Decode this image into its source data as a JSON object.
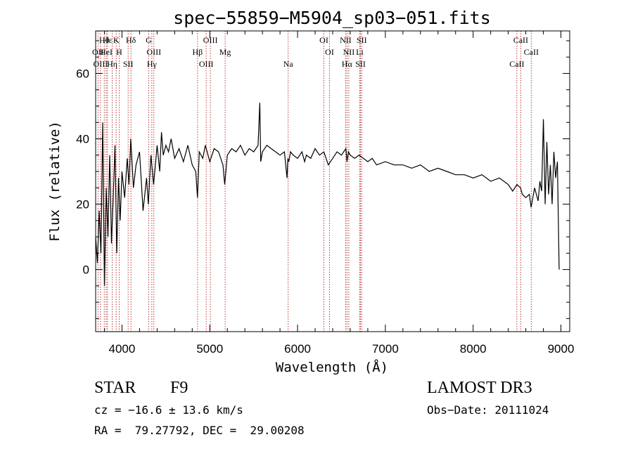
{
  "chart_data": {
    "type": "line",
    "title": "spec−55859−M5904_sp03−051.fits",
    "xlabel": "Wavelength (Å)",
    "ylabel": "Flux (relative)",
    "xlim": [
      3700,
      9100
    ],
    "ylim": [
      -19,
      73
    ],
    "xticks": [
      4000,
      5000,
      6000,
      7000,
      8000,
      9000
    ],
    "yticks": [
      0,
      20,
      40,
      60
    ],
    "grid": false,
    "line_color": "#000000",
    "marker_color": "#b22222",
    "series": [
      {
        "name": "flux",
        "x": [
          3700,
          3720,
          3740,
          3760,
          3780,
          3800,
          3820,
          3840,
          3860,
          3880,
          3900,
          3920,
          3940,
          3960,
          3980,
          4000,
          4030,
          4060,
          4080,
          4100,
          4130,
          4160,
          4200,
          4240,
          4280,
          4300,
          4330,
          4360,
          4400,
          4430,
          4450,
          4470,
          4500,
          4530,
          4560,
          4600,
          4650,
          4700,
          4750,
          4800,
          4840,
          4860,
          4880,
          4920,
          4950,
          5000,
          5050,
          5100,
          5150,
          5170,
          5200,
          5250,
          5300,
          5350,
          5400,
          5450,
          5500,
          5550,
          5570,
          5580,
          5600,
          5650,
          5700,
          5750,
          5800,
          5850,
          5880,
          5890,
          5900,
          5920,
          5950,
          6000,
          6050,
          6080,
          6100,
          6150,
          6200,
          6250,
          6300,
          6350,
          6400,
          6450,
          6500,
          6550,
          6563,
          6580,
          6600,
          6650,
          6700,
          6750,
          6800,
          6850,
          6900,
          7000,
          7100,
          7200,
          7300,
          7400,
          7500,
          7600,
          7700,
          7800,
          7900,
          8000,
          8100,
          8200,
          8300,
          8400,
          8450,
          8500,
          8540,
          8560,
          8600,
          8640,
          8660,
          8700,
          8740,
          8760,
          8780,
          8800,
          8820,
          8840,
          8860,
          8880,
          8900,
          8920,
          8940,
          8960,
          8980
        ],
        "y": [
          10,
          2,
          18,
          5,
          45,
          -5,
          25,
          10,
          35,
          8,
          22,
          38,
          5,
          28,
          15,
          30,
          22,
          34,
          26,
          40,
          25,
          32,
          36,
          18,
          28,
          20,
          35,
          26,
          38,
          30,
          42,
          35,
          38,
          36,
          40,
          34,
          37,
          33,
          38,
          32,
          30,
          22,
          36,
          34,
          38,
          33,
          37,
          36,
          32,
          26,
          35,
          37,
          36,
          38,
          35,
          37,
          36,
          38,
          51,
          33,
          36,
          38,
          37,
          36,
          35,
          36,
          28,
          34,
          33,
          36,
          35,
          34,
          36,
          33,
          35,
          34,
          37,
          35,
          36,
          32,
          34,
          36,
          35,
          37,
          33,
          36,
          35,
          34,
          35,
          34,
          33,
          34,
          32,
          33,
          32,
          32,
          31,
          32,
          30,
          31,
          30,
          29,
          29,
          28,
          29,
          27,
          28,
          26,
          24,
          26,
          25,
          23,
          22,
          23,
          19,
          25,
          21,
          27,
          24,
          46,
          20,
          39,
          23,
          32,
          20,
          36,
          28,
          33,
          0
        ]
      }
    ],
    "lines": [
      {
        "label": "Hθ",
        "wl": 3798
      },
      {
        "label": "OII",
        "wl": 3727
      },
      {
        "label": "OIII",
        "wl": 3755
      },
      {
        "label": "Hε",
        "wl": 3835
      },
      {
        "label": "HeI",
        "wl": 3820
      },
      {
        "label": "Hη",
        "wl": 3889
      },
      {
        "label": "K",
        "wl": 3934
      },
      {
        "label": "H",
        "wl": 3968
      },
      {
        "label": "SII",
        "wl": 4070
      },
      {
        "label": "Hδ",
        "wl": 4102
      },
      {
        "label": "OIII",
        "wl": 4363
      },
      {
        "label": "Hγ",
        "wl": 4340
      },
      {
        "label": "G",
        "wl": 4305
      },
      {
        "label": "Hβ",
        "wl": 4861
      },
      {
        "label": "OIII",
        "wl": 4959
      },
      {
        "label": "OIII",
        "wl": 5007
      },
      {
        "label": "Mg",
        "wl": 5175
      },
      {
        "label": "Na",
        "wl": 5893
      },
      {
        "label": "OI",
        "wl": 6300
      },
      {
        "label": "OI",
        "wl": 6364
      },
      {
        "label": "Hα",
        "wl": 6563
      },
      {
        "label": "NII",
        "wl": 6548
      },
      {
        "label": "NII",
        "wl": 6584
      },
      {
        "label": "SII",
        "wl": 6717
      },
      {
        "label": "SII",
        "wl": 6731
      },
      {
        "label": "Li",
        "wl": 6708
      },
      {
        "label": "CaII",
        "wl": 8498
      },
      {
        "label": "CaII",
        "wl": 8542
      },
      {
        "label": "CaII",
        "wl": 8662
      }
    ]
  },
  "info": {
    "class": "STAR",
    "subclass": "F9",
    "survey": "LAMOST DR3",
    "cz": "cz = −16.6 ± 13.6 km/s",
    "obs_date": "Obs−Date: 20111024",
    "radec": "RA =  79.27792, DEC =  29.00208"
  }
}
